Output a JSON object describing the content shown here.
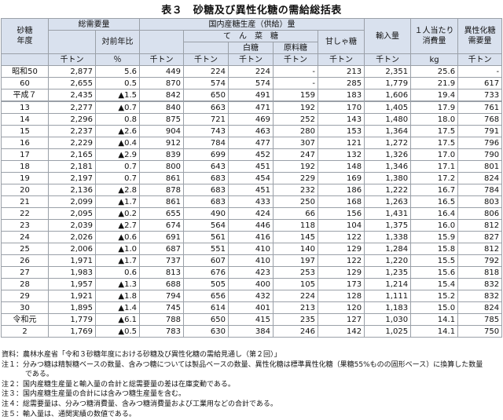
{
  "title": "表３　砂糖及び異性化糖の需給総括表",
  "headers": {
    "year": "砂糖\n年度",
    "demand": "総需要量",
    "yoy": "対前年比",
    "domestic": "国内産糖生産（供給）量",
    "tensai": "て　ん　菜　糖",
    "white": "白糖",
    "raw": "原料糖",
    "kanshato": "甘しゃ糖",
    "import": "輸入量",
    "percap": "１人当たり\n消費量",
    "hfcs": "異性化糖\n需要量",
    "units": [
      "千トン",
      "％",
      "千トン",
      "千トン",
      "千トン",
      "千トン",
      "千トン",
      "千トン",
      "kg",
      "千トン"
    ]
  },
  "rows": [
    [
      "昭和50",
      "2,877",
      "5.6",
      "449",
      "224",
      "224",
      "-",
      "213",
      "2,351",
      "25.6",
      "-"
    ],
    [
      "60",
      "2,655",
      "0.5",
      "870",
      "574",
      "574",
      "-",
      "285",
      "1,779",
      "21.9",
      "617"
    ],
    [
      "平成７",
      "2,435",
      "▲1.5",
      "842",
      "650",
      "491",
      "159",
      "183",
      "1,606",
      "19.4",
      "733"
    ],
    [
      "13",
      "2,277",
      "▲0.7",
      "840",
      "663",
      "471",
      "192",
      "170",
      "1,405",
      "17.9",
      "761"
    ],
    [
      "14",
      "2,296",
      "0.8",
      "875",
      "721",
      "469",
      "252",
      "143",
      "1,480",
      "18.0",
      "768"
    ],
    [
      "15",
      "2,237",
      "▲2.6",
      "904",
      "743",
      "463",
      "280",
      "153",
      "1,364",
      "17.5",
      "791"
    ],
    [
      "16",
      "2,229",
      "▲0.4",
      "912",
      "784",
      "477",
      "307",
      "121",
      "1,272",
      "17.5",
      "796"
    ],
    [
      "17",
      "2,165",
      "▲2.9",
      "839",
      "699",
      "452",
      "247",
      "132",
      "1,326",
      "17.0",
      "790"
    ],
    [
      "18",
      "2,181",
      "0.7",
      "800",
      "643",
      "451",
      "192",
      "148",
      "1,346",
      "17.1",
      "801"
    ],
    [
      "19",
      "2,197",
      "0.7",
      "861",
      "683",
      "454",
      "229",
      "169",
      "1,380",
      "17.2",
      "824"
    ],
    [
      "20",
      "2,136",
      "▲2.8",
      "878",
      "683",
      "451",
      "232",
      "186",
      "1,222",
      "16.7",
      "784"
    ],
    [
      "21",
      "2,099",
      "▲1.7",
      "861",
      "683",
      "433",
      "250",
      "168",
      "1,263",
      "16.5",
      "803"
    ],
    [
      "22",
      "2,095",
      "▲0.2",
      "655",
      "490",
      "424",
      "66",
      "156",
      "1,431",
      "16.4",
      "806"
    ],
    [
      "23",
      "2,039",
      "▲2.7",
      "674",
      "564",
      "446",
      "118",
      "104",
      "1,375",
      "16.0",
      "812"
    ],
    [
      "24",
      "2,026",
      "▲0.6",
      "691",
      "561",
      "416",
      "145",
      "122",
      "1,338",
      "15.9",
      "827"
    ],
    [
      "25",
      "2,006",
      "▲1.0",
      "687",
      "551",
      "410",
      "140",
      "129",
      "1,284",
      "15.8",
      "812"
    ],
    [
      "26",
      "1,971",
      "▲1.7",
      "737",
      "607",
      "410",
      "197",
      "122",
      "1,220",
      "15.5",
      "792"
    ],
    [
      "27",
      "1,983",
      "0.6",
      "813",
      "676",
      "423",
      "253",
      "129",
      "1,235",
      "15.6",
      "818"
    ],
    [
      "28",
      "1,957",
      "▲1.3",
      "688",
      "505",
      "400",
      "105",
      "173",
      "1,214",
      "15.4",
      "832"
    ],
    [
      "29",
      "1,921",
      "▲1.8",
      "794",
      "656",
      "432",
      "224",
      "128",
      "1,111",
      "15.2",
      "832"
    ],
    [
      "30",
      "1,895",
      "▲1.4",
      "745",
      "614",
      "401",
      "213",
      "120",
      "1,183",
      "15.0",
      "824"
    ],
    [
      "令和元",
      "1,779",
      "▲6.1",
      "788",
      "650",
      "415",
      "235",
      "127",
      "1,030",
      "14.1",
      "785"
    ],
    [
      "2",
      "1,769",
      "▲0.5",
      "783",
      "630",
      "384",
      "246",
      "142",
      "1,025",
      "14.1",
      "750"
    ]
  ],
  "notes": [
    "資料：農林水産省「令和３砂糖年度における砂糖及び異性化糖の需給見通し（第２回）」",
    "注１：分みつ糖は精製糖ベースの数量、含みつ糖については製品ベースの数量、異性化糖は標準異性化糖（果糖55%ものの固形ベース）に換算した数量",
    "である。",
    "注２：国内産糖生産量と輸入量の合計と総需要量の差は在庫変動である。",
    "注３：国内産糖生産量の合計には含みつ糖生産量を含む。",
    "注４：総需要量は、分みつ糖消費量、含みつ糖消費量および工業用などの合計である。",
    "注５：輸入量は、通関実績の数値である。"
  ]
}
